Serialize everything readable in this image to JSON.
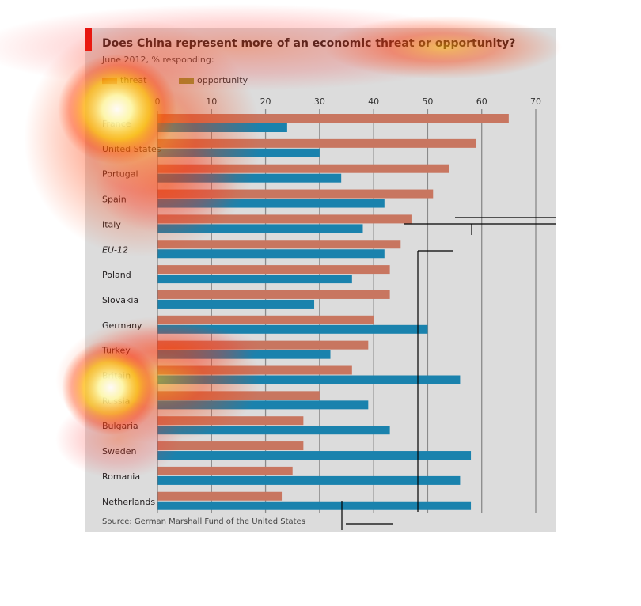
{
  "chart_data": {
    "type": "bar",
    "orientation": "horizontal",
    "title": "Does China represent more of an economic threat or opportunity?",
    "subtitle": "June 2012, % responding:",
    "source": "Source: German Marshall Fund of the United States",
    "categories": [
      "France",
      "United States",
      "Portugal",
      "Spain",
      "Italy",
      "EU-12",
      "Poland",
      "Slovakia",
      "Germany",
      "Turkey",
      "Britain",
      "Russia",
      "Bulgaria",
      "Sweden",
      "Romania",
      "Netherlands"
    ],
    "series": [
      {
        "name": "threat",
        "color": "#c87660",
        "values": [
          65,
          59,
          54,
          51,
          47,
          45,
          43,
          43,
          40,
          39,
          36,
          30,
          27,
          27,
          25,
          23
        ]
      },
      {
        "name": "opportunity",
        "color": "#1a82ad",
        "values": [
          24,
          30,
          34,
          42,
          38,
          42,
          36,
          29,
          50,
          32,
          56,
          39,
          43,
          58,
          56,
          58
        ]
      }
    ],
    "legend_swatches": {
      "threat": "#c87660",
      "opportunity": "#8c9a3c"
    },
    "xlim": [
      0,
      70
    ],
    "xticks": [
      0,
      10,
      20,
      30,
      40,
      50,
      60,
      70
    ],
    "grid": true,
    "legend_position": "top-left",
    "italic_categories": [
      "EU-12"
    ]
  },
  "colors": {
    "panel": "#dcdcdc",
    "accent": "#e3120b",
    "gridline": "#8a8a8a",
    "heat_hot": "#ffffb0",
    "heat_warm": "#ff3a00"
  }
}
